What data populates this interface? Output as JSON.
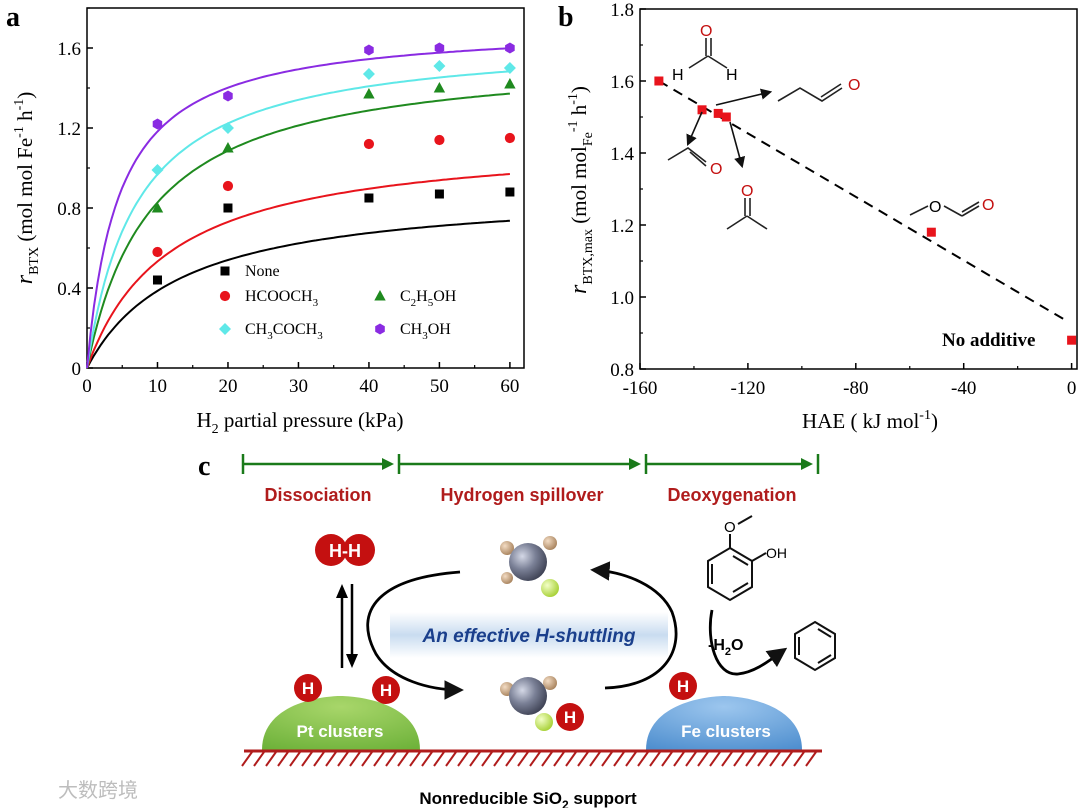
{
  "panels": {
    "a_letter": "a",
    "b_letter": "b",
    "c_letter": "c"
  },
  "chart_data": [
    {
      "id": "a",
      "type": "scatter",
      "xlabel_main": "H",
      "xlabel_sub": "2",
      "xlabel_rest": " partial pressure (kPa)",
      "ylabel_r": "r",
      "ylabel_sub": "BTX",
      "ylabel_rest": " (mol mol Fe",
      "ylabel_sup1": "-1",
      "ylabel_h": " h",
      "ylabel_sup2": "-1",
      "ylabel_close": ")",
      "xlim": [
        0,
        62
      ],
      "ylim": [
        0,
        1.8
      ],
      "xticks": [
        0,
        10,
        20,
        30,
        40,
        50,
        60
      ],
      "yticks": [
        0,
        0.4,
        0.8,
        1.2,
        1.6
      ],
      "ytick_labels": [
        "0",
        "0.4",
        "0.8",
        "1.2",
        "1.6"
      ],
      "legend_position": "lower-center",
      "series": [
        {
          "name": "None",
          "legend_parts": [
            [
              "None",
              ""
            ]
          ],
          "color": "#000000",
          "marker": "square",
          "x": [
            10,
            20,
            40,
            50,
            60
          ],
          "y": [
            0.44,
            0.8,
            0.85,
            0.87,
            0.88
          ],
          "fit_vmax": 0.9,
          "fit_k": 0.075
        },
        {
          "name": "HCOOCH3",
          "legend_parts": [
            [
              "HCOOCH",
              ""
            ],
            [
              "3",
              "sub"
            ]
          ],
          "color": "#e8141c",
          "marker": "circle",
          "x": [
            10,
            20,
            40,
            50,
            60
          ],
          "y": [
            0.58,
            0.91,
            1.12,
            1.14,
            1.15
          ],
          "fit_vmax": 1.16,
          "fit_k": 0.085
        },
        {
          "name": "C2H5OH",
          "legend_parts": [
            [
              "C",
              ""
            ],
            [
              "2",
              "sub"
            ],
            [
              "H",
              ""
            ],
            [
              "5",
              "sub"
            ],
            [
              "OH",
              ""
            ]
          ],
          "color": "#1f8a1f",
          "marker": "triangle",
          "x": [
            10,
            20,
            40,
            50,
            60
          ],
          "y": [
            0.8,
            1.1,
            1.37,
            1.4,
            1.42
          ],
          "fit_vmax": 1.58,
          "fit_k": 0.11
        },
        {
          "name": "CH3COCH3",
          "legend_parts": [
            [
              "CH",
              ""
            ],
            [
              "3",
              "sub"
            ],
            [
              "COCH",
              ""
            ],
            [
              "3",
              "sub"
            ]
          ],
          "color": "#5fe8e8",
          "marker": "diamond",
          "x": [
            10,
            20,
            40,
            50,
            60
          ],
          "y": [
            0.99,
            1.2,
            1.47,
            1.51,
            1.5
          ],
          "fit_vmax": 1.66,
          "fit_k": 0.14
        },
        {
          "name": "CH3OH",
          "legend_parts": [
            [
              "CH",
              ""
            ],
            [
              "3",
              "sub"
            ],
            [
              "OH",
              ""
            ]
          ],
          "color": "#8a2be2",
          "marker": "hexagon",
          "x": [
            10,
            20,
            40,
            50,
            60
          ],
          "y": [
            1.22,
            1.36,
            1.59,
            1.6,
            1.6
          ],
          "fit_vmax": 1.72,
          "fit_k": 0.22
        }
      ]
    },
    {
      "id": "b",
      "type": "scatter",
      "xlabel_main": "HAE ( kJ mol",
      "xlabel_sup": "-1",
      "xlabel_close": ")",
      "ylabel_r": "r",
      "ylabel_sub": "BTX,max",
      "ylabel_rest": " (mol mol",
      "ylabel_sub2": "Fe",
      "ylabel_sup1": "-1",
      "ylabel_h": " h",
      "ylabel_sup2": "-1",
      "ylabel_close": ")",
      "xlim": [
        -160,
        2
      ],
      "ylim": [
        0.8,
        1.8
      ],
      "xticks": [
        -160,
        -120,
        -80,
        -40,
        0
      ],
      "xtick_labels": [
        "-160",
        "-120",
        "-80",
        "-40",
        "0"
      ],
      "yticks": [
        0.8,
        1.0,
        1.2,
        1.4,
        1.6,
        1.8
      ],
      "ytick_labels": [
        "0.8",
        "1.0",
        "1.2",
        "1.4",
        "1.6",
        "1.8"
      ],
      "marker_color": "#e8141c",
      "points": [
        {
          "x": -153,
          "y": 1.6
        },
        {
          "x": -137,
          "y": 1.52
        },
        {
          "x": -131,
          "y": 1.51
        },
        {
          "x": -128,
          "y": 1.5
        },
        {
          "x": -52,
          "y": 1.18
        },
        {
          "x": 0,
          "y": 0.88
        }
      ],
      "fit_line": {
        "x": [
          -153,
          -1
        ],
        "y": [
          1.6,
          0.93
        ]
      },
      "annotation": "No additive",
      "molecules": {
        "H": "H",
        "O": "O"
      }
    }
  ],
  "scheme": {
    "stage_1": "Dissociation",
    "stage_2": "Hydrogen spillover",
    "stage_3": "Deoxygenation",
    "h2_label": "H-H",
    "h_atom": "H",
    "cycle_label": "An effective H-shuttling",
    "pt_label": "Pt clusters",
    "fe_label": "Fe clusters",
    "water_loss": "-H",
    "water_sub": "2",
    "water_o": "O",
    "oh_label": "OH",
    "support_main": "Nonreducible SiO",
    "support_sub": "2",
    "support_rest": " support",
    "watermark": "大数跨境"
  },
  "colors": {
    "stage_green": "#1a7a1a",
    "stage_text": "#b01c1c",
    "h_red": "#c41010",
    "pt_green": "#8dc24a",
    "fe_blue": "#6aa6da",
    "cycle_text": "#1a3f8c",
    "support_red": "#b01c1c"
  }
}
